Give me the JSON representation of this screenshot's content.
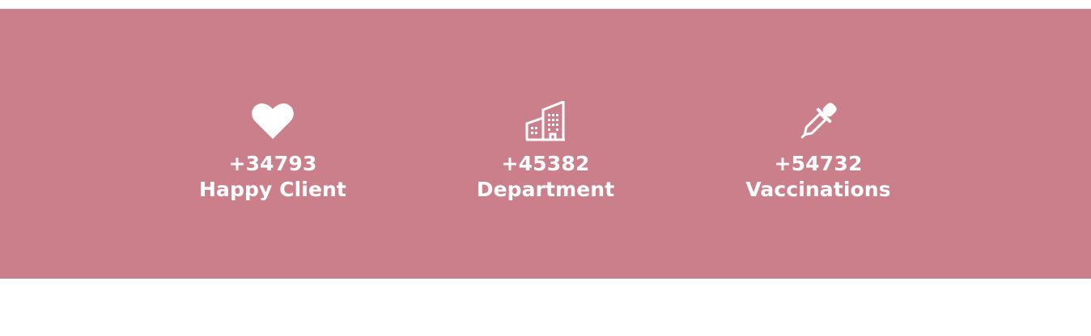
{
  "colors": {
    "band_background": "#ca7f8b",
    "text": "#ffffff",
    "page_background": "#ffffff"
  },
  "stats": [
    {
      "icon": "heart-icon",
      "number": "+34793",
      "label": "Happy Client"
    },
    {
      "icon": "building-icon",
      "number": "+45382",
      "label": "Department"
    },
    {
      "icon": "dropper-icon",
      "number": "+54732",
      "label": "Vaccinations"
    }
  ]
}
